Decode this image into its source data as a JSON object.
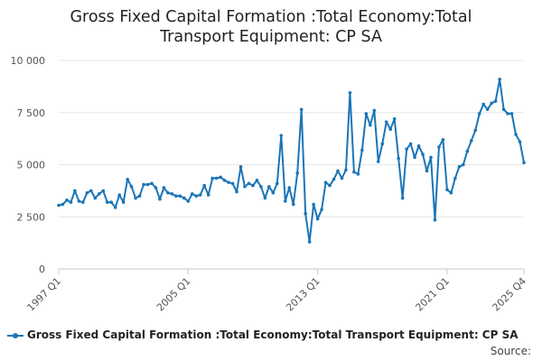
{
  "chart_data": {
    "type": "line",
    "title_lines": [
      "Gross Fixed Capital Formation :Total Economy:Total",
      "Transport Equipment: CP SA"
    ],
    "x_tick_labels": [
      "1997 Q1",
      "2005 Q1",
      "2013 Q1",
      "2021 Q1",
      "2025 Q4"
    ],
    "x_tick_index": [
      0,
      32,
      64,
      96,
      115
    ],
    "y_ticks": [
      0,
      2500,
      5000,
      7500,
      10000
    ],
    "y_tick_labels": [
      "0",
      "2 500",
      "5 000",
      "7 500",
      "10 000"
    ],
    "ylim": [
      0,
      10000
    ],
    "grid": true,
    "series": [
      {
        "name": "Gross Fixed Capital Formation :Total Economy:Total Transport Equipment: CP SA",
        "color": "#1b75b7",
        "values": [
          3050,
          3100,
          3300,
          3200,
          3750,
          3250,
          3200,
          3650,
          3750,
          3400,
          3600,
          3750,
          3200,
          3200,
          2950,
          3550,
          3200,
          4300,
          3950,
          3400,
          3500,
          4050,
          4050,
          4100,
          3900,
          3350,
          3900,
          3650,
          3600,
          3500,
          3500,
          3400,
          3250,
          3600,
          3500,
          3550,
          4000,
          3550,
          4350,
          4350,
          4400,
          4250,
          4150,
          4100,
          3700,
          4900,
          3950,
          4100,
          4000,
          4250,
          3950,
          3400,
          3950,
          3650,
          4100,
          6400,
          3250,
          3900,
          3100,
          4600,
          7650,
          2650,
          1300,
          3100,
          2400,
          2850,
          4150,
          4000,
          4300,
          4700,
          4350,
          4750,
          8450,
          4650,
          4550,
          5700,
          7450,
          6900,
          7600,
          5150,
          6000,
          7050,
          6700,
          7200,
          5300,
          3400,
          5750,
          6000,
          5350,
          5900,
          5500,
          4700,
          5350,
          2350,
          5850,
          6200,
          3800,
          3650,
          4350,
          4900,
          5000,
          5650,
          6150,
          6650,
          7450,
          7900,
          7650,
          7950,
          8050,
          9100,
          7650,
          7450,
          7450,
          6450,
          6100,
          5100
        ]
      }
    ]
  },
  "legend": {
    "label": "Gross Fixed Capital Formation :Total Economy:Total Transport Equipment: CP SA"
  },
  "source": {
    "label": "Source:"
  }
}
